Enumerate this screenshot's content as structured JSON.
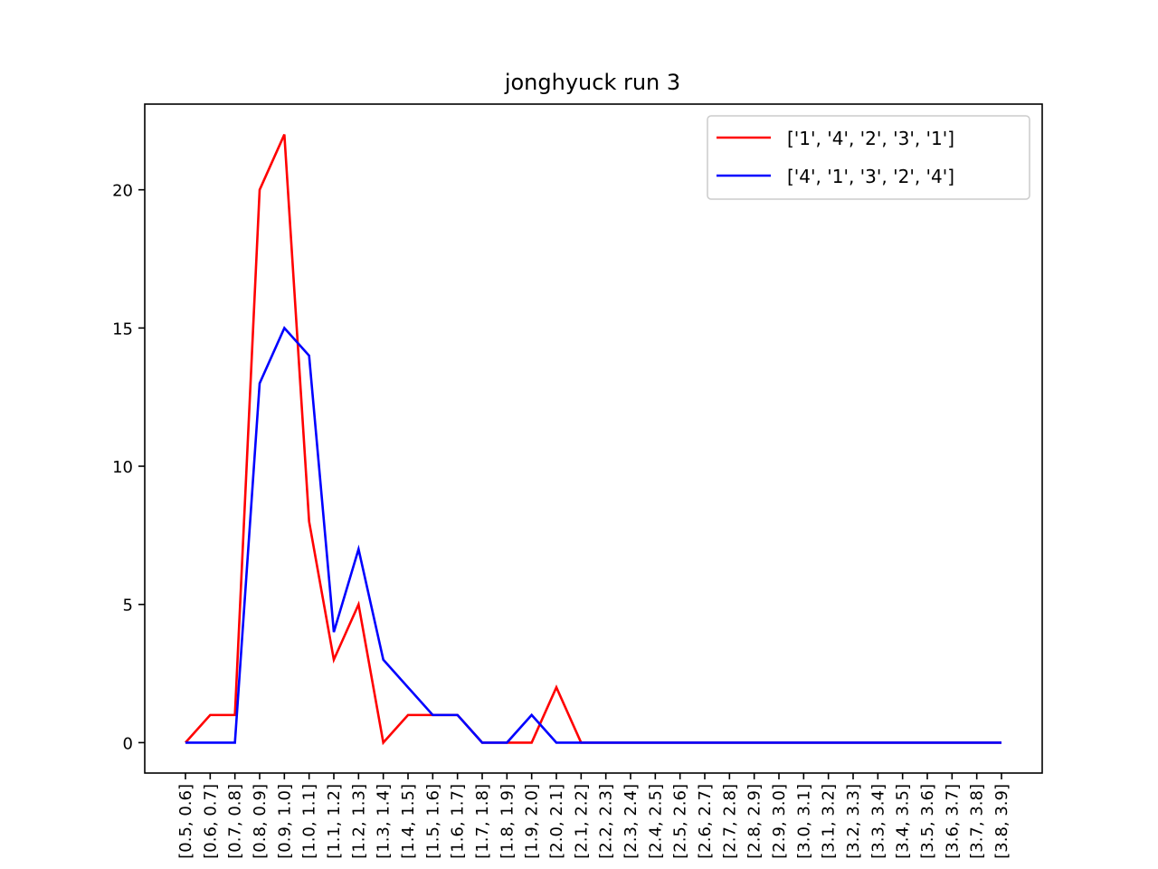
{
  "chart_data": {
    "type": "line",
    "title": "jonghyuck run 3",
    "xlabel": "",
    "ylabel": "",
    "ylim": [
      -1.1,
      23.1
    ],
    "yticks": [
      0,
      5,
      10,
      15,
      20
    ],
    "grid": false,
    "legend_position": "top-right",
    "categories": [
      "[0.5, 0.6]",
      "[0.6, 0.7]",
      "[0.7, 0.8]",
      "[0.8, 0.9]",
      "[0.9, 1.0]",
      "[1.0, 1.1]",
      "[1.1, 1.2]",
      "[1.2, 1.3]",
      "[1.3, 1.4]",
      "[1.4, 1.5]",
      "[1.5, 1.6]",
      "[1.6, 1.7]",
      "[1.7, 1.8]",
      "[1.8, 1.9]",
      "[1.9, 2.0]",
      "[2.0, 2.1]",
      "[2.1, 2.2]",
      "[2.2, 2.3]",
      "[2.3, 2.4]",
      "[2.4, 2.5]",
      "[2.5, 2.6]",
      "[2.6, 2.7]",
      "[2.7, 2.8]",
      "[2.8, 2.9]",
      "[2.9, 3.0]",
      "[3.0, 3.1]",
      "[3.1, 3.2]",
      "[3.2, 3.3]",
      "[3.3, 3.4]",
      "[3.4, 3.5]",
      "[3.5, 3.6]",
      "[3.6, 3.7]",
      "[3.7, 3.8]",
      "[3.8, 3.9]"
    ],
    "series": [
      {
        "name": "['1', '4', '2', '3', '1']",
        "color": "#ff0000",
        "values": [
          0,
          1,
          1,
          20,
          22,
          8,
          3,
          5,
          0,
          1,
          1,
          1,
          0,
          0,
          0,
          2,
          0,
          0,
          0,
          0,
          0,
          0,
          0,
          0,
          0,
          0,
          0,
          0,
          0,
          0,
          0,
          0,
          0,
          0
        ]
      },
      {
        "name": "['4', '1', '3', '2', '4']",
        "color": "#0000ff",
        "values": [
          0,
          0,
          0,
          13,
          15,
          14,
          4,
          7,
          3,
          2,
          1,
          1,
          0,
          0,
          1,
          0,
          0,
          0,
          0,
          0,
          0,
          0,
          0,
          0,
          0,
          0,
          0,
          0,
          0,
          0,
          0,
          0,
          0,
          0
        ]
      }
    ]
  }
}
